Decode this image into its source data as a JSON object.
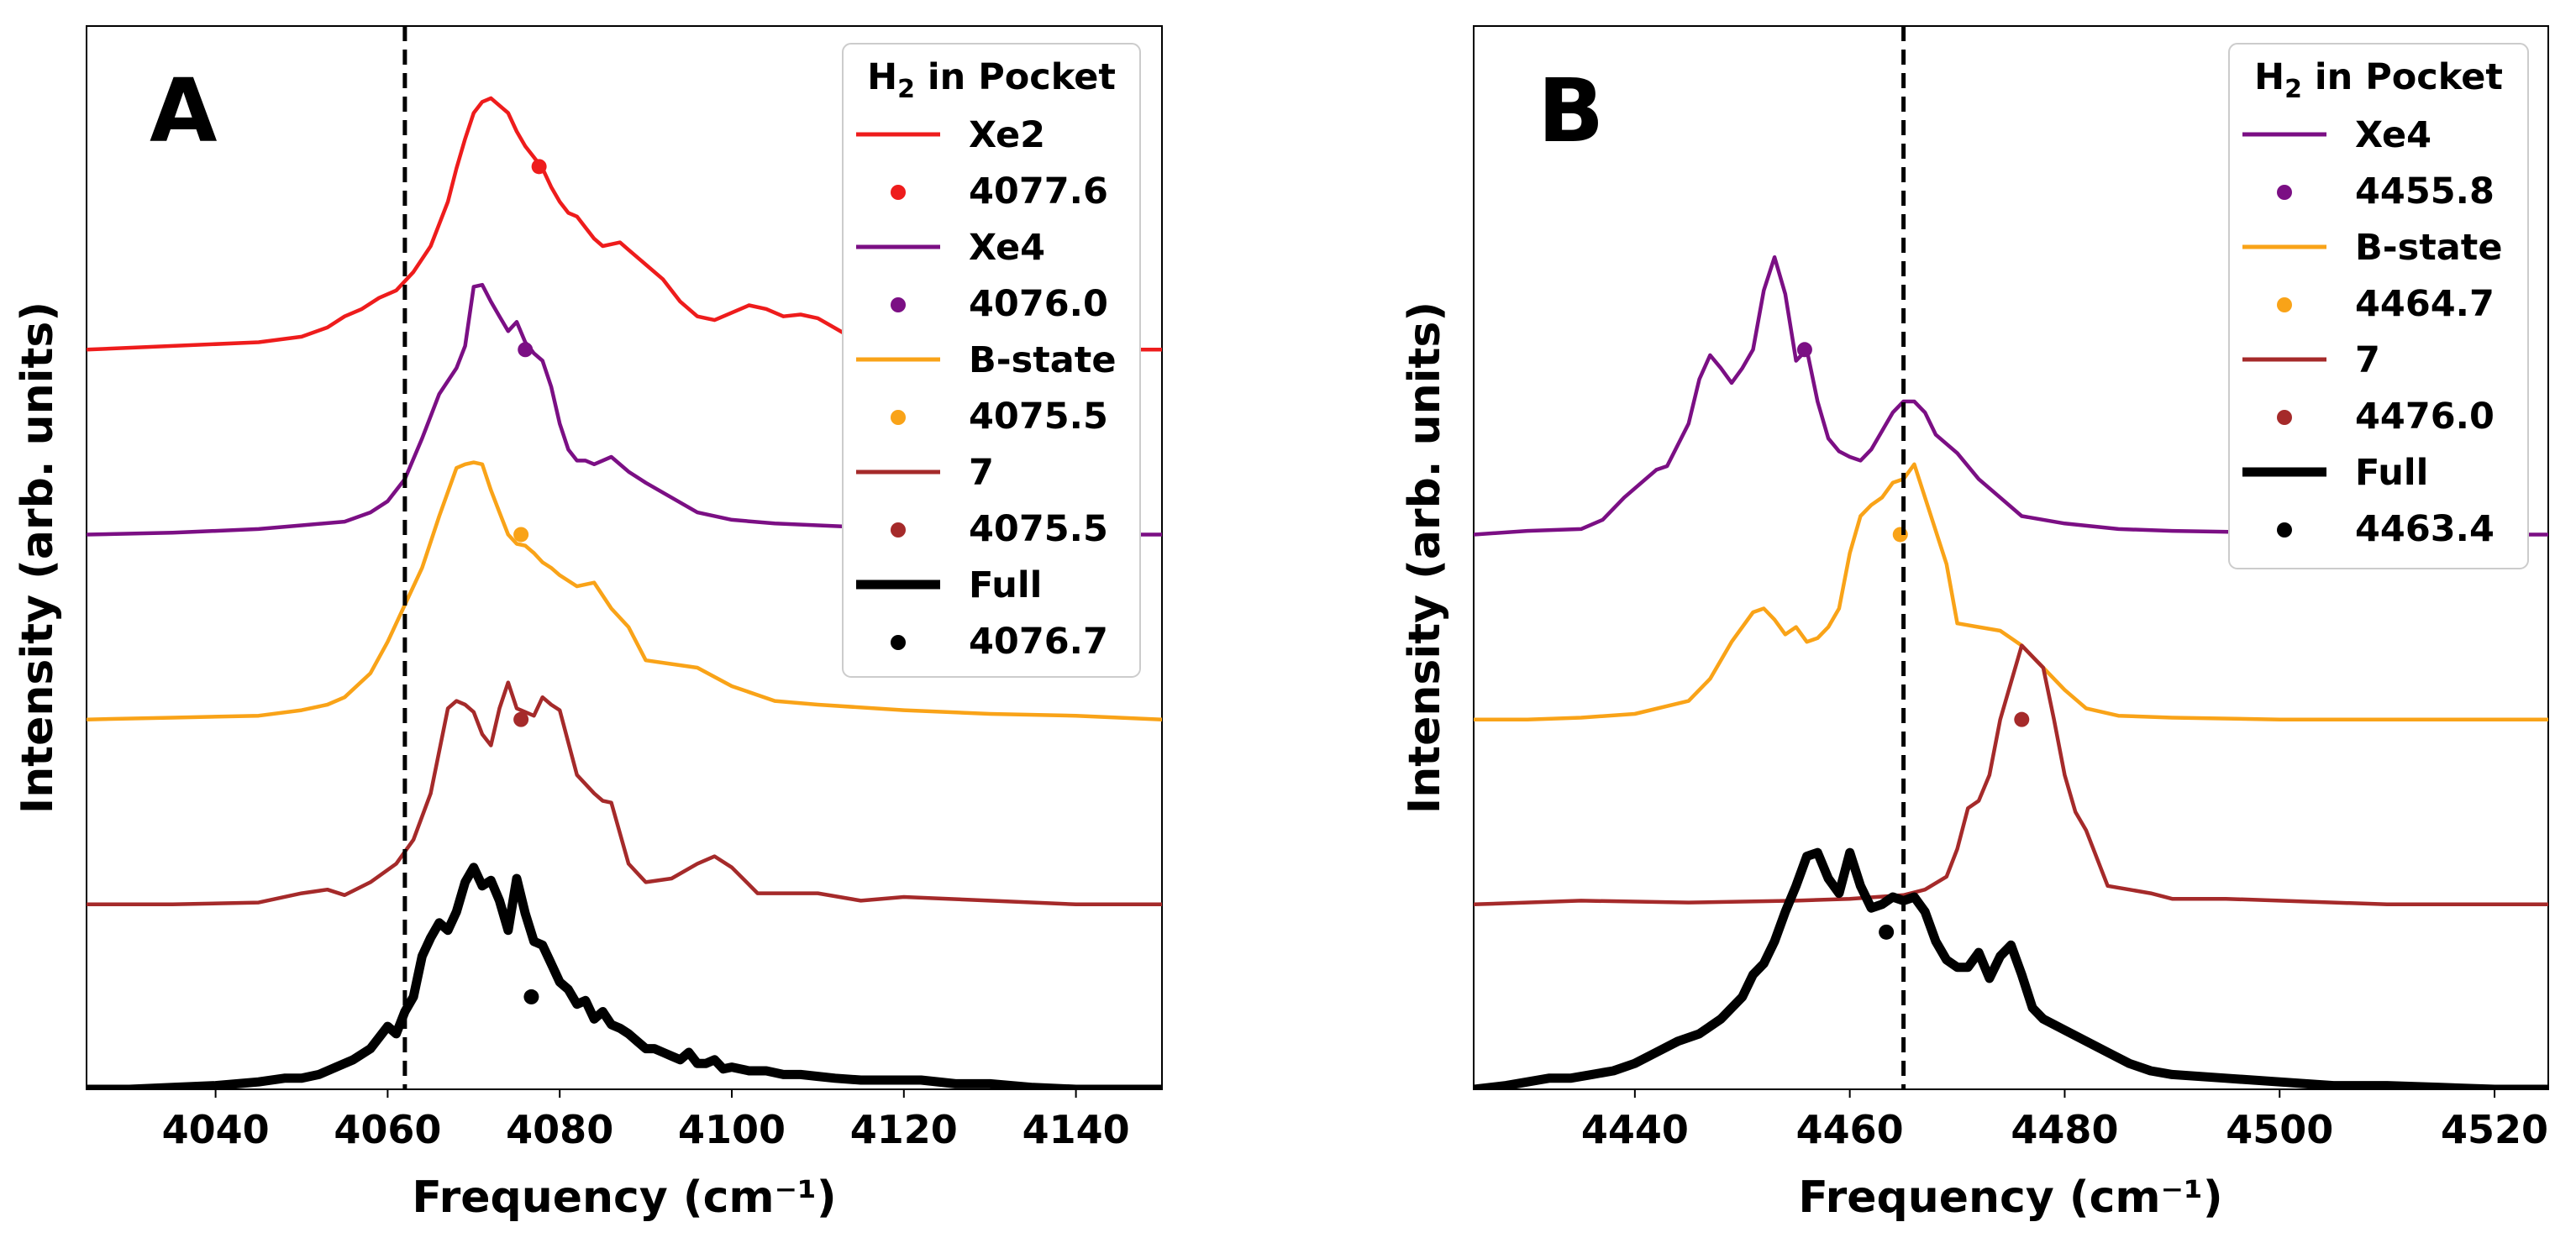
{
  "chart_data": [
    {
      "type": "line",
      "panel_label": "A",
      "xlabel": "Frequency (cm⁻¹)",
      "ylabel": "Intensity (arb. units)",
      "xlim": [
        4025,
        4150
      ],
      "ylim": [
        0,
        5.75
      ],
      "xticks": [
        4040,
        4060,
        4080,
        4100,
        4120,
        4140
      ],
      "grid": false,
      "reference_line_x": 4062,
      "legend": {
        "title": "H₂ in Pocket",
        "title_main": "H",
        "title_sub": "2",
        "title_rest": " in Pocket",
        "position": "top-right"
      },
      "series": [
        {
          "name": "Xe2",
          "color": "#ee1c1c",
          "offset": 4,
          "x": [
            4025,
            4035,
            4045,
            4050,
            4053,
            4055,
            4057,
            4059,
            4061,
            4063,
            4065,
            4067,
            4068,
            4069,
            4070,
            4071,
            4072,
            4073,
            4074,
            4075,
            4076,
            4077,
            4078,
            4079,
            4080,
            4081,
            4082,
            4083,
            4084,
            4085,
            4086,
            4087,
            4088,
            4090,
            4092,
            4094,
            4096,
            4098,
            4100,
            4102,
            4104,
            4106,
            4108,
            4110,
            4113,
            4118,
            4125,
            4135,
            4150
          ],
          "y": [
            0.0,
            0.02,
            0.04,
            0.07,
            0.12,
            0.18,
            0.22,
            0.28,
            0.32,
            0.42,
            0.56,
            0.8,
            0.98,
            1.14,
            1.28,
            1.34,
            1.36,
            1.32,
            1.28,
            1.18,
            1.1,
            1.04,
            0.98,
            0.88,
            0.8,
            0.74,
            0.72,
            0.66,
            0.6,
            0.56,
            0.57,
            0.58,
            0.54,
            0.46,
            0.38,
            0.26,
            0.18,
            0.16,
            0.2,
            0.24,
            0.22,
            0.18,
            0.19,
            0.17,
            0.09,
            0.04,
            0.02,
            0.0,
            0.0
          ],
          "peak": 4077.6,
          "marker_y": 0.99,
          "label": "4077.6"
        },
        {
          "name": "Xe4",
          "color": "#7b0f84",
          "offset": 3,
          "x": [
            4025,
            4035,
            4045,
            4050,
            4055,
            4058,
            4060,
            4062,
            4064,
            4066,
            4068,
            4069,
            4070,
            4071,
            4072,
            4073,
            4074,
            4075,
            4076,
            4077,
            4078,
            4079,
            4080,
            4081,
            4082,
            4083,
            4084,
            4086,
            4088,
            4090,
            4093,
            4096,
            4100,
            4105,
            4110,
            4120,
            4130,
            4140,
            4150
          ],
          "y": [
            0.0,
            0.01,
            0.03,
            0.05,
            0.07,
            0.12,
            0.18,
            0.3,
            0.52,
            0.76,
            0.9,
            1.02,
            1.34,
            1.35,
            1.26,
            1.18,
            1.1,
            1.15,
            1.04,
            0.98,
            0.94,
            0.8,
            0.6,
            0.46,
            0.4,
            0.4,
            0.38,
            0.42,
            0.34,
            0.28,
            0.2,
            0.12,
            0.08,
            0.06,
            0.05,
            0.03,
            0.02,
            0.0,
            0.0
          ],
          "peak": 4076.0,
          "marker_y": 1.0,
          "label": "4076.0"
        },
        {
          "name": "B-state",
          "color": "#f9a318",
          "offset": 2,
          "x": [
            4025,
            4035,
            4045,
            4050,
            4053,
            4055,
            4058,
            4060,
            4062,
            4064,
            4066,
            4068,
            4069,
            4070,
            4071,
            4072,
            4073,
            4074,
            4075,
            4076,
            4077,
            4078,
            4079,
            4080,
            4082,
            4084,
            4086,
            4088,
            4090,
            4093,
            4096,
            4100,
            4105,
            4110,
            4120,
            4130,
            4140,
            4150
          ],
          "y": [
            0.0,
            0.01,
            0.02,
            0.05,
            0.08,
            0.12,
            0.25,
            0.42,
            0.62,
            0.82,
            1.1,
            1.36,
            1.38,
            1.39,
            1.38,
            1.24,
            1.12,
            1.0,
            0.95,
            0.94,
            0.9,
            0.85,
            0.82,
            0.78,
            0.72,
            0.74,
            0.6,
            0.5,
            0.32,
            0.3,
            0.28,
            0.18,
            0.1,
            0.08,
            0.05,
            0.03,
            0.02,
            0.0
          ],
          "peak": 4075.5,
          "marker_y": 1.0,
          "label": "4075.5"
        },
        {
          "name": "7",
          "color": "#a52a2a",
          "offset": 1,
          "x": [
            4025,
            4035,
            4045,
            4050,
            4053,
            4055,
            4058,
            4061,
            4063,
            4065,
            4067,
            4068,
            4069,
            4070,
            4071,
            4072,
            4073,
            4074,
            4075,
            4076,
            4077,
            4078,
            4079,
            4080,
            4082,
            4084,
            4085,
            4086,
            4088,
            4090,
            4093,
            4096,
            4098,
            4100,
            4103,
            4106,
            4110,
            4115,
            4120,
            4130,
            4140,
            4150
          ],
          "y": [
            0.0,
            0.0,
            0.01,
            0.06,
            0.08,
            0.05,
            0.12,
            0.22,
            0.35,
            0.6,
            1.06,
            1.1,
            1.08,
            1.04,
            0.92,
            0.86,
            1.06,
            1.2,
            1.06,
            1.04,
            1.02,
            1.12,
            1.08,
            1.05,
            0.7,
            0.6,
            0.56,
            0.55,
            0.22,
            0.12,
            0.14,
            0.22,
            0.26,
            0.2,
            0.06,
            0.06,
            0.06,
            0.02,
            0.04,
            0.02,
            0.0,
            0.0
          ],
          "peak": 4075.5,
          "marker_y": 1.0,
          "label": "4075.5"
        },
        {
          "name": "Full",
          "color": "#000000",
          "offset": 0,
          "thick": true,
          "x": [
            4025,
            4030,
            4035,
            4040,
            4045,
            4048,
            4050,
            4052,
            4054,
            4056,
            4058,
            4060,
            4061,
            4062,
            4063,
            4064,
            4065,
            4066,
            4067,
            4068,
            4069,
            4070,
            4071,
            4072,
            4073,
            4074,
            4075,
            4076,
            4077,
            4078,
            4079,
            4080,
            4081,
            4082,
            4083,
            4084,
            4085,
            4086,
            4087,
            4088,
            4089,
            4090,
            4091,
            4092,
            4093,
            4094,
            4095,
            4096,
            4097,
            4098,
            4099,
            4100,
            4102,
            4104,
            4106,
            4108,
            4110,
            4112,
            4115,
            4118,
            4122,
            4126,
            4130,
            4135,
            4140,
            4145,
            4150
          ],
          "y": [
            0.0,
            0.0,
            0.01,
            0.02,
            0.04,
            0.06,
            0.06,
            0.08,
            0.12,
            0.16,
            0.22,
            0.34,
            0.3,
            0.42,
            0.5,
            0.72,
            0.82,
            0.9,
            0.86,
            0.96,
            1.12,
            1.2,
            1.1,
            1.13,
            1.02,
            0.86,
            1.14,
            0.95,
            0.8,
            0.78,
            0.68,
            0.58,
            0.54,
            0.46,
            0.48,
            0.38,
            0.42,
            0.35,
            0.33,
            0.3,
            0.26,
            0.22,
            0.22,
            0.2,
            0.18,
            0.16,
            0.2,
            0.14,
            0.14,
            0.16,
            0.11,
            0.12,
            0.1,
            0.1,
            0.08,
            0.08,
            0.07,
            0.06,
            0.05,
            0.05,
            0.05,
            0.03,
            0.03,
            0.01,
            0.0,
            0.0,
            0.0
          ],
          "peak": 4076.7,
          "marker_y": 0.5,
          "label": "4076.7"
        }
      ]
    },
    {
      "type": "line",
      "panel_label": "B",
      "xlabel": "Frequency (cm⁻¹)",
      "ylabel": "Intensity (arb. units)",
      "xlim": [
        4425,
        4525
      ],
      "ylim": [
        0,
        5.75
      ],
      "xticks": [
        4440,
        4460,
        4480,
        4500,
        4520
      ],
      "grid": false,
      "reference_line_x": 4465,
      "legend": {
        "title": "H₂ in Pocket",
        "title_main": "H",
        "title_sub": "2",
        "title_rest": " in Pocket",
        "position": "top-right"
      },
      "series": [
        {
          "name": "Xe4",
          "color": "#7b0f84",
          "offset": 3,
          "x": [
            4425,
            4430,
            4435,
            4437,
            4439,
            4441,
            4442,
            4443,
            4445,
            4446,
            4447,
            4448,
            4449,
            4450,
            4451,
            4452,
            4453,
            4454,
            4455,
            4456,
            4457,
            4458,
            4459,
            4460,
            4461,
            4462,
            4463,
            4464,
            4465,
            4466,
            4467,
            4468,
            4470,
            4472,
            4474,
            4476,
            4480,
            4485,
            4490,
            4500,
            4510,
            4525
          ],
          "y": [
            0.0,
            0.02,
            0.03,
            0.08,
            0.2,
            0.3,
            0.35,
            0.37,
            0.6,
            0.84,
            0.97,
            0.9,
            0.82,
            0.9,
            1.0,
            1.32,
            1.5,
            1.3,
            0.94,
            1.0,
            0.72,
            0.52,
            0.45,
            0.42,
            0.4,
            0.46,
            0.56,
            0.66,
            0.72,
            0.72,
            0.66,
            0.54,
            0.44,
            0.3,
            0.2,
            0.1,
            0.06,
            0.03,
            0.02,
            0.01,
            0.0,
            0.0
          ],
          "peak": 4455.8,
          "marker_y": 1.0,
          "label": "4455.8"
        },
        {
          "name": "B-state",
          "color": "#f9a318",
          "offset": 2,
          "x": [
            4425,
            4430,
            4435,
            4440,
            4445,
            4447,
            4449,
            4451,
            4452,
            4453,
            4454,
            4455,
            4456,
            4457,
            4458,
            4459,
            4460,
            4461,
            4462,
            4463,
            4464,
            4465,
            4466,
            4467,
            4468,
            4469,
            4470,
            4472,
            4474,
            4476,
            4478,
            4480,
            4482,
            4485,
            4490,
            4500,
            4510,
            4525
          ],
          "y": [
            0.0,
            0.0,
            0.01,
            0.03,
            0.1,
            0.22,
            0.42,
            0.58,
            0.6,
            0.54,
            0.46,
            0.5,
            0.42,
            0.44,
            0.5,
            0.6,
            0.9,
            1.1,
            1.16,
            1.2,
            1.28,
            1.3,
            1.38,
            1.2,
            1.02,
            0.84,
            0.52,
            0.5,
            0.48,
            0.4,
            0.28,
            0.16,
            0.06,
            0.02,
            0.01,
            0.0,
            0.0,
            0.0
          ],
          "peak": 4464.7,
          "marker_y": 1.0,
          "label": "4464.7"
        },
        {
          "name": "7",
          "color": "#a52a2a",
          "offset": 1,
          "x": [
            4425,
            4435,
            4445,
            4455,
            4460,
            4465,
            4467,
            4469,
            4470,
            4471,
            4472,
            4473,
            4474,
            4475,
            4476,
            4477,
            4478,
            4479,
            4480,
            4481,
            4482,
            4483,
            4484,
            4486,
            4488,
            4490,
            4495,
            4500,
            4510,
            4525
          ],
          "y": [
            0.0,
            0.02,
            0.01,
            0.02,
            0.03,
            0.05,
            0.08,
            0.15,
            0.3,
            0.52,
            0.56,
            0.7,
            1.0,
            1.2,
            1.4,
            1.34,
            1.28,
            1.0,
            0.7,
            0.5,
            0.4,
            0.25,
            0.1,
            0.08,
            0.06,
            0.03,
            0.03,
            0.02,
            0.0,
            0.0
          ],
          "peak": 4476.0,
          "marker_y": 1.0,
          "label": "4476.0"
        },
        {
          "name": "Full",
          "color": "#000000",
          "offset": 0,
          "thick": true,
          "x": [
            4425,
            4428,
            4430,
            4432,
            4434,
            4436,
            4438,
            4440,
            4442,
            4444,
            4446,
            4448,
            4450,
            4451,
            4452,
            4453,
            4454,
            4455,
            4456,
            4457,
            4458,
            4459,
            4460,
            4461,
            4462,
            4463,
            4464,
            4465,
            4466,
            4467,
            4468,
            4469,
            4470,
            4471,
            4472,
            4473,
            4474,
            4475,
            4476,
            4477,
            4478,
            4480,
            4482,
            4484,
            4486,
            4488,
            4490,
            4495,
            4500,
            4505,
            4510,
            4515,
            4520,
            4525
          ],
          "y": [
            0.0,
            0.02,
            0.04,
            0.06,
            0.06,
            0.08,
            0.1,
            0.14,
            0.2,
            0.26,
            0.3,
            0.38,
            0.5,
            0.62,
            0.68,
            0.8,
            0.96,
            1.1,
            1.26,
            1.28,
            1.14,
            1.06,
            1.28,
            1.1,
            0.98,
            1.0,
            1.04,
            1.02,
            1.04,
            0.96,
            0.8,
            0.7,
            0.66,
            0.66,
            0.74,
            0.6,
            0.72,
            0.78,
            0.62,
            0.44,
            0.38,
            0.32,
            0.26,
            0.2,
            0.14,
            0.1,
            0.08,
            0.06,
            0.04,
            0.02,
            0.02,
            0.01,
            0.0,
            0.0
          ],
          "peak": 4463.4,
          "marker_y": 0.85,
          "label": "4463.4"
        }
      ]
    }
  ]
}
